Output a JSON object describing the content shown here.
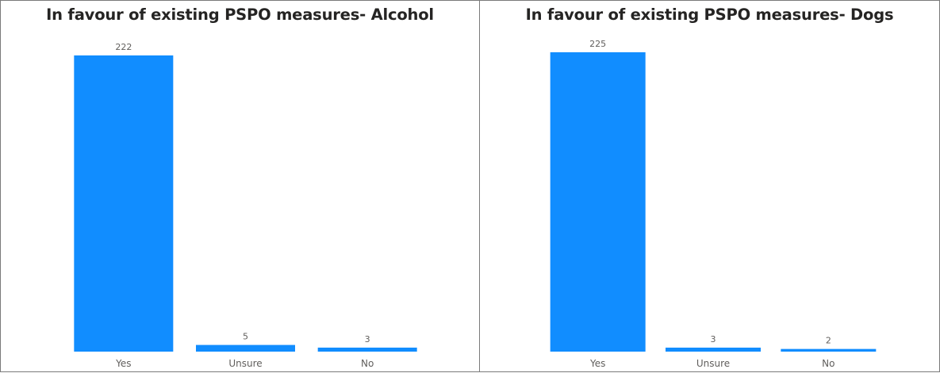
{
  "chart_data": [
    {
      "type": "bar",
      "title": "In favour of existing PSPO measures- Alcohol",
      "categories": [
        "Yes",
        "Unsure",
        "No"
      ],
      "values": [
        222,
        5,
        3
      ],
      "ylim": [
        0,
        230
      ],
      "grid": false,
      "bar_color": "#118dff"
    },
    {
      "type": "bar",
      "title": "In favour of existing PSPO measures- Dogs",
      "categories": [
        "Yes",
        "Unsure",
        "No"
      ],
      "values": [
        225,
        3,
        2
      ],
      "ylim": [
        0,
        230
      ],
      "grid": false,
      "bar_color": "#118dff"
    }
  ]
}
